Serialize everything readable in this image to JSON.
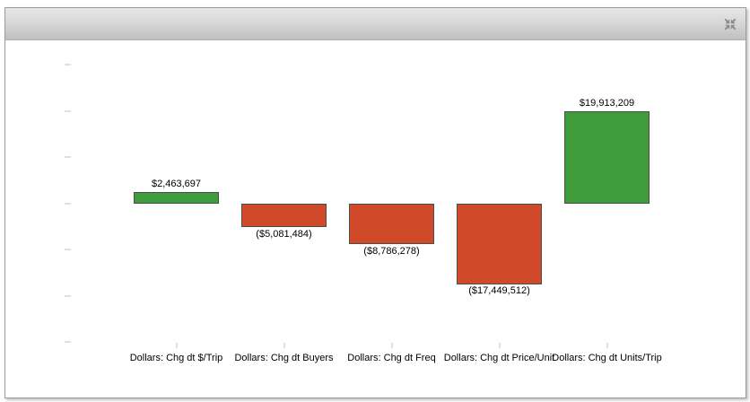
{
  "widget": {
    "header": {
      "title": "",
      "resize_icon": "collapse-arrows-icon",
      "icon_color": "#8c8c8c"
    }
  },
  "chart_data": {
    "type": "bar",
    "title": "",
    "xlabel": "",
    "ylabel": "",
    "categories": [
      "Dollars: Chg dt $/Trip",
      "Dollars: Chg dt Buyers",
      "Dollars: Chg dt Freq",
      "Dollars: Chg dt Price/Unit",
      "Dollars: Chg dt Units/Trip"
    ],
    "values": [
      2463697,
      -5081484,
      -8786278,
      -17449512,
      19913209
    ],
    "value_labels": [
      "$2,463,697",
      "($5,081,484)",
      "($8,786,278)",
      "($17,449,512)",
      "$19,913,209"
    ],
    "positive_color": "#3f9c3a",
    "negative_color": "#d04a2a",
    "bar_border_color": "#4d4d4d",
    "ylim": [
      -30000000,
      30000000
    ],
    "y_tick_step": 10000000,
    "y_tick_values": [
      30000000,
      20000000,
      10000000,
      0,
      -10000000,
      -20000000,
      -30000000
    ],
    "y_tick_labels_visible": false,
    "tick_color": "#d4e2f2",
    "grid": false,
    "legend": "none"
  }
}
